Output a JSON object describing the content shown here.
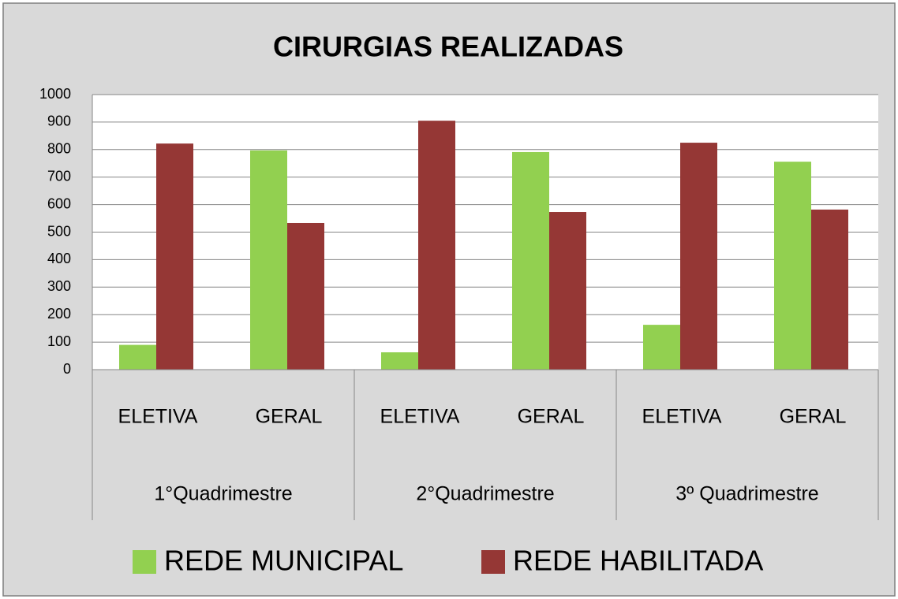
{
  "chart_data": {
    "type": "bar",
    "title": "CIRURGIAS REALIZADAS",
    "categories": [
      "ELETIVA",
      "GERAL",
      "ELETIVA",
      "GERAL",
      "ELETIVA",
      "GERAL"
    ],
    "groups": [
      "1°Quadrimestre",
      "2°Quadrimestre",
      "3º Quadrimestre"
    ],
    "series": [
      {
        "name": "REDE MUNICIPAL",
        "color": "#92d050",
        "values": [
          90,
          797,
          63,
          791,
          163,
          756
        ]
      },
      {
        "name": "REDE HABILITADA",
        "color": "#953735",
        "values": [
          822,
          533,
          905,
          573,
          825,
          582
        ]
      }
    ],
    "ylim": [
      0,
      1000
    ],
    "yticks": [
      0,
      100,
      200,
      300,
      400,
      500,
      600,
      700,
      800,
      900,
      1000
    ],
    "grid": true,
    "legend": "bottom"
  }
}
